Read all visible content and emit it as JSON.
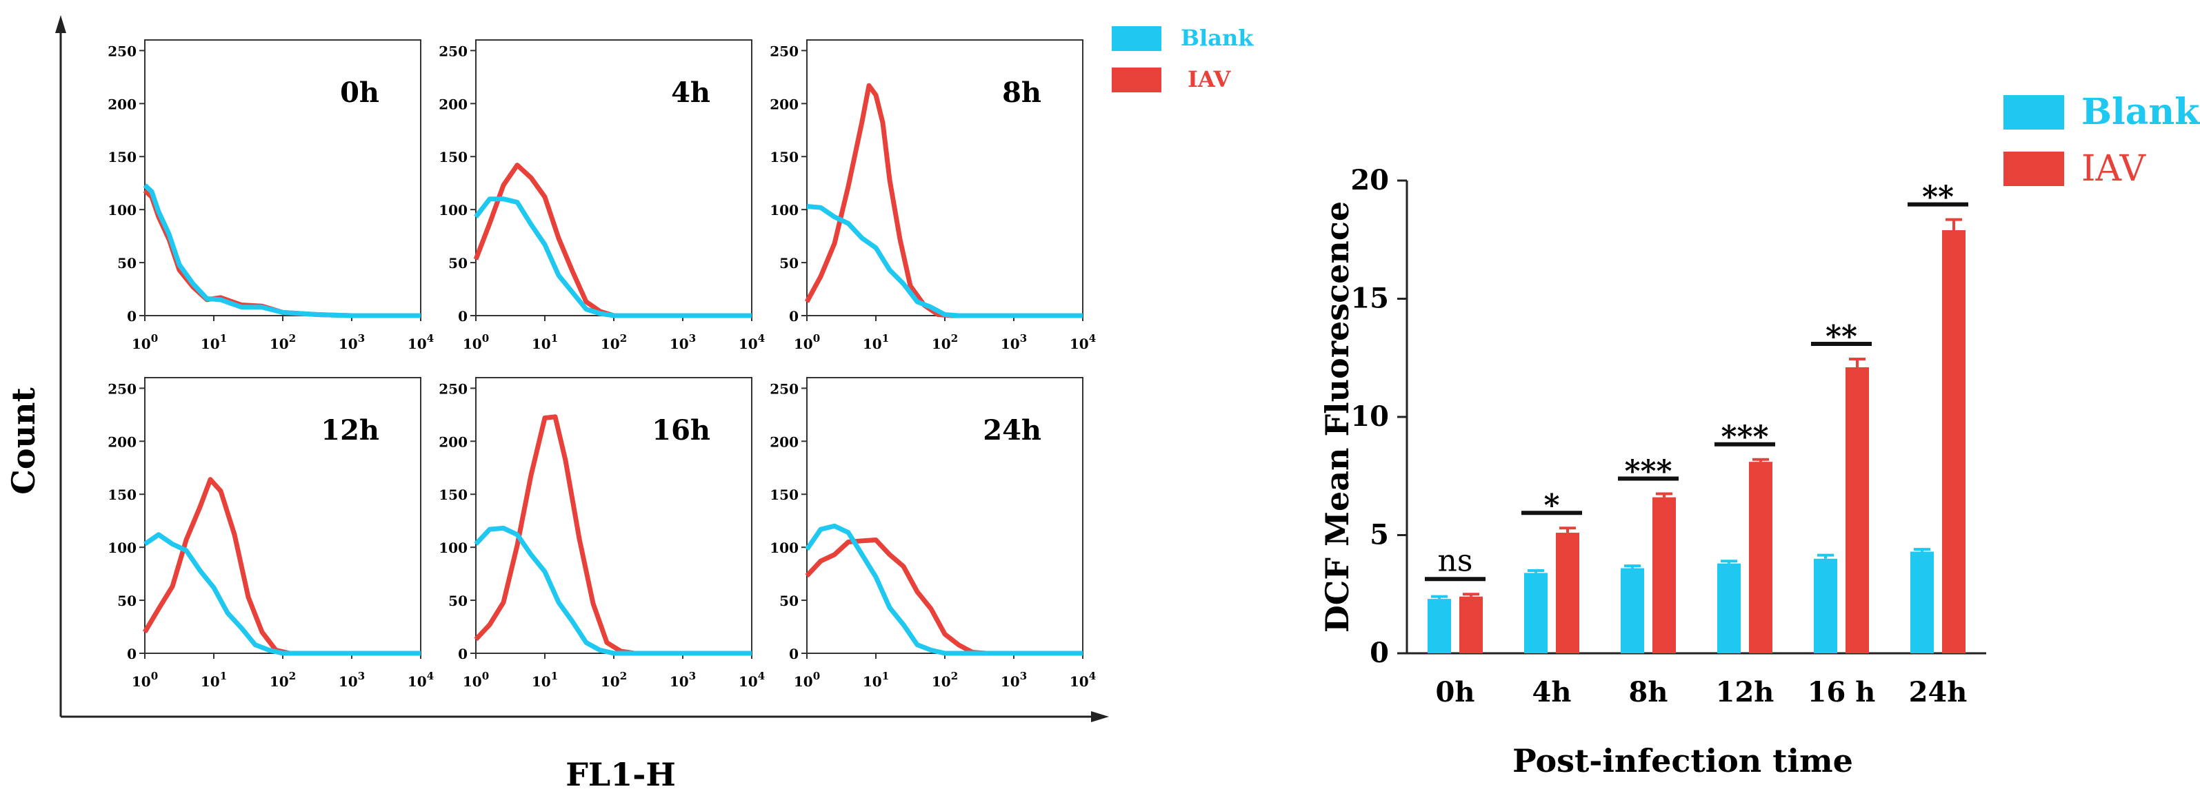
{
  "left_panel": {
    "y_title": "Count",
    "x_title": "FL1-H",
    "legend": [
      {
        "label": "Blank",
        "color": "#1ec8f0"
      },
      {
        "label": "IAV",
        "color": "#e8413a"
      }
    ],
    "y_ticks": [
      "0",
      "50",
      "100",
      "150",
      "200",
      "250"
    ],
    "x_ticks": [
      {
        "base": "10",
        "exp": "0"
      },
      {
        "base": "10",
        "exp": "1"
      },
      {
        "base": "10",
        "exp": "2"
      },
      {
        "base": "10",
        "exp": "3"
      },
      {
        "base": "10",
        "exp": "4"
      }
    ],
    "panels": [
      {
        "label": "0h",
        "blank": [
          [
            0,
            125
          ],
          [
            0.1,
            115
          ],
          [
            0.2,
            100
          ],
          [
            0.35,
            75
          ],
          [
            0.5,
            50
          ],
          [
            0.7,
            28
          ],
          [
            0.9,
            18
          ],
          [
            1.1,
            13
          ],
          [
            1.4,
            10
          ],
          [
            1.7,
            6
          ],
          [
            2.0,
            3
          ],
          [
            2.5,
            1
          ],
          [
            3,
            0
          ],
          [
            4,
            0
          ]
        ],
        "iav": [
          [
            0,
            120
          ],
          [
            0.1,
            110
          ],
          [
            0.2,
            95
          ],
          [
            0.35,
            70
          ],
          [
            0.5,
            45
          ],
          [
            0.7,
            25
          ],
          [
            0.9,
            17
          ],
          [
            1.1,
            15
          ],
          [
            1.4,
            12
          ],
          [
            1.7,
            7
          ],
          [
            2.0,
            3
          ],
          [
            2.5,
            1
          ],
          [
            3,
            0
          ],
          [
            4,
            0
          ]
        ]
      },
      {
        "label": "4h",
        "blank": [
          [
            0,
            95
          ],
          [
            0.2,
            108
          ],
          [
            0.4,
            112
          ],
          [
            0.6,
            105
          ],
          [
            0.8,
            88
          ],
          [
            1.0,
            65
          ],
          [
            1.2,
            40
          ],
          [
            1.4,
            20
          ],
          [
            1.6,
            8
          ],
          [
            1.8,
            2
          ],
          [
            2.0,
            0
          ],
          [
            4,
            0
          ]
        ],
        "iav": [
          [
            0,
            55
          ],
          [
            0.2,
            85
          ],
          [
            0.4,
            125
          ],
          [
            0.6,
            140
          ],
          [
            0.8,
            132
          ],
          [
            1.0,
            110
          ],
          [
            1.2,
            75
          ],
          [
            1.4,
            40
          ],
          [
            1.6,
            15
          ],
          [
            1.8,
            4
          ],
          [
            2.0,
            0
          ],
          [
            4,
            0
          ]
        ]
      },
      {
        "label": "8h",
        "blank": [
          [
            0,
            105
          ],
          [
            0.2,
            100
          ],
          [
            0.4,
            95
          ],
          [
            0.6,
            85
          ],
          [
            0.8,
            75
          ],
          [
            1.0,
            62
          ],
          [
            1.2,
            45
          ],
          [
            1.4,
            28
          ],
          [
            1.6,
            15
          ],
          [
            1.8,
            6
          ],
          [
            2.0,
            1
          ],
          [
            2.2,
            0
          ],
          [
            4,
            0
          ]
        ],
        "iav": [
          [
            0,
            15
          ],
          [
            0.2,
            35
          ],
          [
            0.4,
            70
          ],
          [
            0.6,
            120
          ],
          [
            0.8,
            185
          ],
          [
            0.9,
            215
          ],
          [
            1.0,
            210
          ],
          [
            1.1,
            180
          ],
          [
            1.2,
            130
          ],
          [
            1.35,
            70
          ],
          [
            1.5,
            30
          ],
          [
            1.7,
            8
          ],
          [
            1.9,
            1
          ],
          [
            2.1,
            0
          ],
          [
            4,
            0
          ]
        ]
      },
      {
        "label": "12h",
        "blank": [
          [
            0,
            105
          ],
          [
            0.2,
            110
          ],
          [
            0.4,
            105
          ],
          [
            0.6,
            95
          ],
          [
            0.8,
            80
          ],
          [
            1.0,
            60
          ],
          [
            1.2,
            40
          ],
          [
            1.4,
            22
          ],
          [
            1.6,
            10
          ],
          [
            1.8,
            3
          ],
          [
            2.0,
            0
          ],
          [
            4,
            0
          ]
        ],
        "iav": [
          [
            0,
            22
          ],
          [
            0.2,
            40
          ],
          [
            0.4,
            65
          ],
          [
            0.6,
            105
          ],
          [
            0.8,
            140
          ],
          [
            0.95,
            162
          ],
          [
            1.1,
            155
          ],
          [
            1.3,
            110
          ],
          [
            1.5,
            55
          ],
          [
            1.7,
            18
          ],
          [
            1.9,
            3
          ],
          [
            2.1,
            0
          ],
          [
            4,
            0
          ]
        ]
      },
      {
        "label": "16h",
        "blank": [
          [
            0,
            105
          ],
          [
            0.2,
            115
          ],
          [
            0.4,
            120
          ],
          [
            0.6,
            110
          ],
          [
            0.8,
            95
          ],
          [
            1.0,
            75
          ],
          [
            1.2,
            50
          ],
          [
            1.4,
            28
          ],
          [
            1.6,
            12
          ],
          [
            1.8,
            3
          ],
          [
            2.0,
            0
          ],
          [
            4,
            0
          ]
        ],
        "iav": [
          [
            0,
            15
          ],
          [
            0.2,
            25
          ],
          [
            0.4,
            50
          ],
          [
            0.6,
            100
          ],
          [
            0.8,
            170
          ],
          [
            1.0,
            220
          ],
          [
            1.15,
            225
          ],
          [
            1.3,
            180
          ],
          [
            1.5,
            110
          ],
          [
            1.7,
            45
          ],
          [
            1.9,
            12
          ],
          [
            2.1,
            2
          ],
          [
            2.3,
            0
          ],
          [
            4,
            0
          ]
        ]
      },
      {
        "label": "24h",
        "blank": [
          [
            0,
            100
          ],
          [
            0.2,
            115
          ],
          [
            0.4,
            122
          ],
          [
            0.6,
            112
          ],
          [
            0.8,
            95
          ],
          [
            1.0,
            70
          ],
          [
            1.2,
            45
          ],
          [
            1.4,
            25
          ],
          [
            1.6,
            10
          ],
          [
            1.8,
            3
          ],
          [
            2.0,
            0
          ],
          [
            4,
            0
          ]
        ],
        "iav": [
          [
            0,
            75
          ],
          [
            0.2,
            85
          ],
          [
            0.4,
            95
          ],
          [
            0.6,
            103
          ],
          [
            0.8,
            108
          ],
          [
            1.0,
            105
          ],
          [
            1.2,
            95
          ],
          [
            1.4,
            80
          ],
          [
            1.6,
            60
          ],
          [
            1.8,
            40
          ],
          [
            2.0,
            20
          ],
          [
            2.2,
            6
          ],
          [
            2.4,
            1
          ],
          [
            2.6,
            0
          ],
          [
            4,
            0
          ]
        ]
      }
    ]
  },
  "chart_data": {
    "type": "bar",
    "categories": [
      "0h",
      "4h",
      "8h",
      "12h",
      "16 h",
      "24h"
    ],
    "series": [
      {
        "name": "Blank",
        "color": "#1ec8f0",
        "values": [
          2.3,
          3.4,
          3.6,
          3.8,
          4.0,
          4.3
        ],
        "errors": [
          0.1,
          0.1,
          0.1,
          0.1,
          0.15,
          0.1
        ]
      },
      {
        "name": "IAV",
        "color": "#e8413a",
        "values": [
          2.4,
          5.1,
          6.6,
          8.1,
          12.1,
          17.9
        ],
        "errors": [
          0.1,
          0.2,
          0.15,
          0.1,
          0.35,
          0.45
        ]
      }
    ],
    "significance": [
      "ns",
      "*",
      "***",
      "***",
      "**",
      "**"
    ],
    "ylabel": "DCF Mean Fluorescence",
    "xlabel": "Post-infection time",
    "ylim": [
      0,
      20
    ],
    "y_ticks": [
      "0",
      "5",
      "10",
      "15",
      "20"
    ],
    "legend_position": "top-right"
  }
}
